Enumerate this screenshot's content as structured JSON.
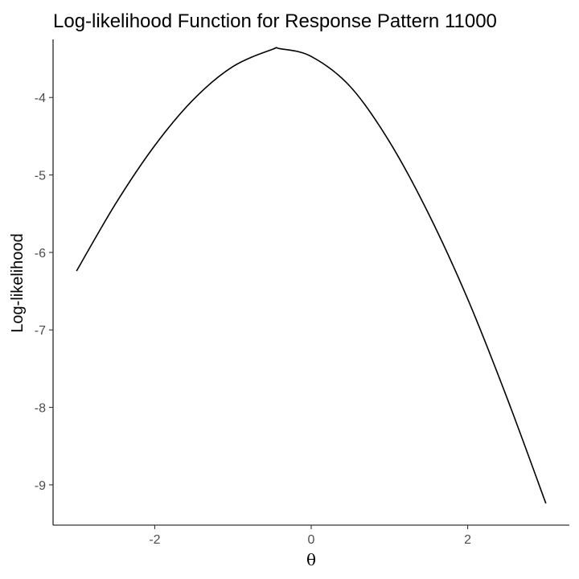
{
  "chart_data": {
    "type": "line",
    "title": "Log-likelihood Function for Response Pattern 11000",
    "xlabel": "θ",
    "ylabel": "Log-likelihood",
    "xlim": [
      -3.3,
      3.3
    ],
    "ylim": [
      -9.52,
      -3.25
    ],
    "x_ticks": [
      -2,
      0,
      2
    ],
    "x_tick_labels": [
      "-2",
      "0",
      "2"
    ],
    "y_ticks": [
      -4,
      -5,
      -6,
      -7,
      -8,
      -9
    ],
    "y_tick_labels": [
      "-4",
      "-5",
      "-6",
      "-7",
      "-8",
      "-9"
    ],
    "grid": false,
    "legend": "none",
    "line_color": "#000000",
    "series": [
      {
        "x": [
          -3.0,
          -2.5,
          -2.0,
          -1.5,
          -1.0,
          -0.5,
          -0.4,
          0.0,
          0.5,
          1.0,
          1.5,
          2.0,
          2.5,
          3.0
        ],
        "values": [
          -6.24,
          -5.37,
          -4.62,
          -4.02,
          -3.6,
          -3.38,
          -3.37,
          -3.47,
          -3.86,
          -4.57,
          -5.5,
          -6.6,
          -7.87,
          -9.24
        ]
      }
    ]
  }
}
